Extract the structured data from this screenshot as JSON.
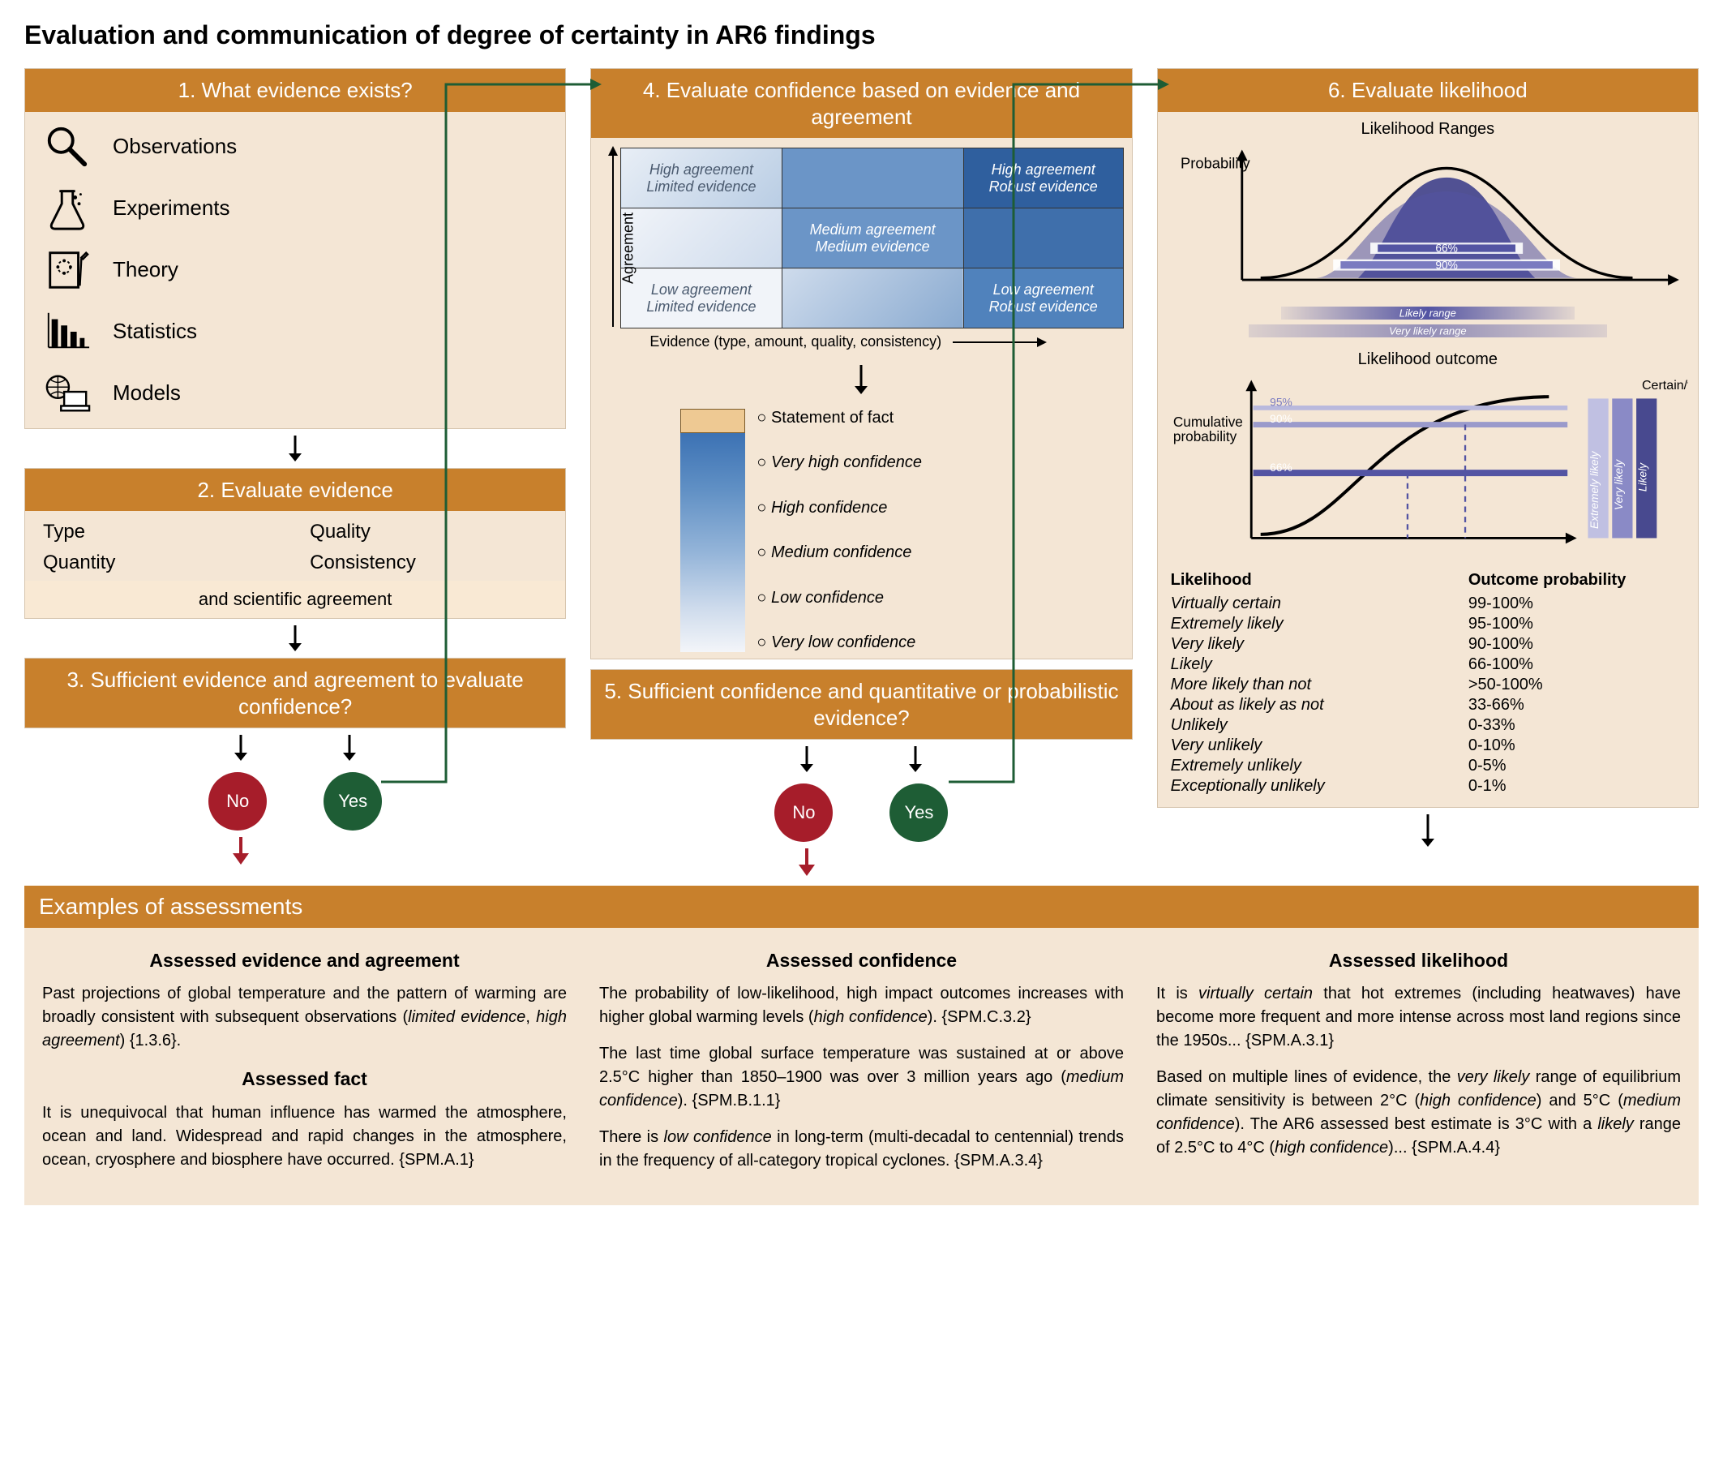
{
  "title": "Evaluation and communication of degree of certainty in AR6 findings",
  "colors": {
    "header_bg": "#c8802c",
    "panel_bg": "#f4e6d5",
    "no_circle": "#a61d2a",
    "yes_circle": "#1e5d35",
    "matrix_dark": "#2f5f9e",
    "matrix_mid": "#6b95c7",
    "matrix_light": "#d9e3f0",
    "conf_top": "#3c72b4",
    "likelihood_purple": "#5354a3",
    "connector_green": "#1e5d35"
  },
  "panel1": {
    "header": "1. What evidence exists?",
    "items": [
      "Observations",
      "Experiments",
      "Theory",
      "Statistics",
      "Models"
    ]
  },
  "panel2": {
    "header": "2. Evaluate evidence",
    "criteria": [
      "Type",
      "Quality",
      "Quantity",
      "Consistency"
    ],
    "agreement": "and scientific agreement"
  },
  "panel3": {
    "header": "3. Sufficient evidence and agreement to evaluate confidence?"
  },
  "decisions": {
    "no": "No",
    "yes": "Yes"
  },
  "panel4": {
    "header": "4. Evaluate confidence based on evidence and agreement",
    "y_axis": "Agreement",
    "x_axis": "Evidence (type, amount, quality, consistency)",
    "cells": {
      "tl": "High agreement\nLimited evidence",
      "tr": "High agreement\nRobust evidence",
      "mm": "Medium agreement\nMedium evidence",
      "bl": "Low agreement\nLimited evidence",
      "br": "Low agreement\nRobust evidence"
    },
    "scale": [
      "Statement of fact",
      "Very high confidence",
      "High confidence",
      "Medium confidence",
      "Low confidence",
      "Very low confidence"
    ]
  },
  "panel5": {
    "header": "5. Sufficient confidence and quantitative or probabilistic evidence?"
  },
  "panel6": {
    "header": "6. Evaluate likelihood",
    "chart1_title": "Likelihood Ranges",
    "chart1_ylabel": "Probability",
    "chart1_bands": {
      "inner": "66%",
      "outer": "90%"
    },
    "range_bars": [
      "Likely range",
      "Very likely range"
    ],
    "chart2_title": "Likelihood outcome",
    "chart2_ylabel": "Cumulative probability",
    "chart2_lines": [
      "66%",
      "90%",
      "95%"
    ],
    "chart2_right_labels": [
      "Certain/fact",
      "Extremely likely",
      "Very likely",
      "Likely"
    ],
    "table_headers": [
      "Likelihood",
      "Outcome probability"
    ],
    "rows": [
      [
        "Virtually certain",
        "99-100%"
      ],
      [
        "Extremely likely",
        "95-100%"
      ],
      [
        "Very likely",
        "90-100%"
      ],
      [
        "Likely",
        "66-100%"
      ],
      [
        "More likely than not",
        ">50-100%"
      ],
      [
        "About as likely as not",
        "33-66%"
      ],
      [
        "Unlikely",
        "0-33%"
      ],
      [
        "Very unlikely",
        "0-10%"
      ],
      [
        "Extremely unlikely",
        "0-5%"
      ],
      [
        "Exceptionally unlikely",
        "0-1%"
      ]
    ]
  },
  "examples": {
    "header": "Examples of assessments",
    "col1": {
      "h1": "Assessed evidence and agreement",
      "p1_a": "Past projections of global temperature and the pattern of warming are broadly consistent with subsequent observations (",
      "p1_b": "limited evidence",
      "p1_c": ", ",
      "p1_d": "high agreement",
      "p1_e": ") {1.3.6}.",
      "h2": "Assessed fact",
      "p2": "It is unequivocal that human influence has warmed the atmosphere, ocean and land. Widespread and rapid changes in the atmosphere, ocean, cryosphere and biosphere have occurred. {SPM.A.1}"
    },
    "col2": {
      "h1": "Assessed confidence",
      "p1_a": "The probability of low-likelihood, high impact outcomes increases with higher global warming levels (",
      "p1_b": "high confidence",
      "p1_c": "). {SPM.C.3.2}",
      "p2_a": "The last time global surface temperature was sustained at or above 2.5°C higher than 1850–1900 was over 3 million years ago (",
      "p2_b": "medium confidence",
      "p2_c": "). {SPM.B.1.1}",
      "p3_a": "There is ",
      "p3_b": "low confidence",
      "p3_c": " in long-term (multi-decadal to centennial) trends in the frequency of all-category tropical cyclones. {SPM.A.3.4}"
    },
    "col3": {
      "h1": "Assessed likelihood",
      "p1_a": "It is ",
      "p1_b": "virtually certain",
      "p1_c": " that hot extremes (including heatwaves) have become more frequent and more intense across most land regions since the 1950s... {SPM.A.3.1}",
      "p2_a": "Based on multiple lines of evidence, the ",
      "p2_b": "very likely",
      "p2_c": " range of equilibrium climate sensitivity is between 2°C (",
      "p2_d": "high confidence",
      "p2_e": ") and 5°C (",
      "p2_f": "medium confidence",
      "p2_g": "). The AR6 assessed best estimate is 3°C with a ",
      "p2_h": "likely",
      "p2_i": " range of 2.5°C to 4°C (",
      "p2_j": "high confidence",
      "p2_k": ")... {SPM.A.4.4}"
    }
  }
}
